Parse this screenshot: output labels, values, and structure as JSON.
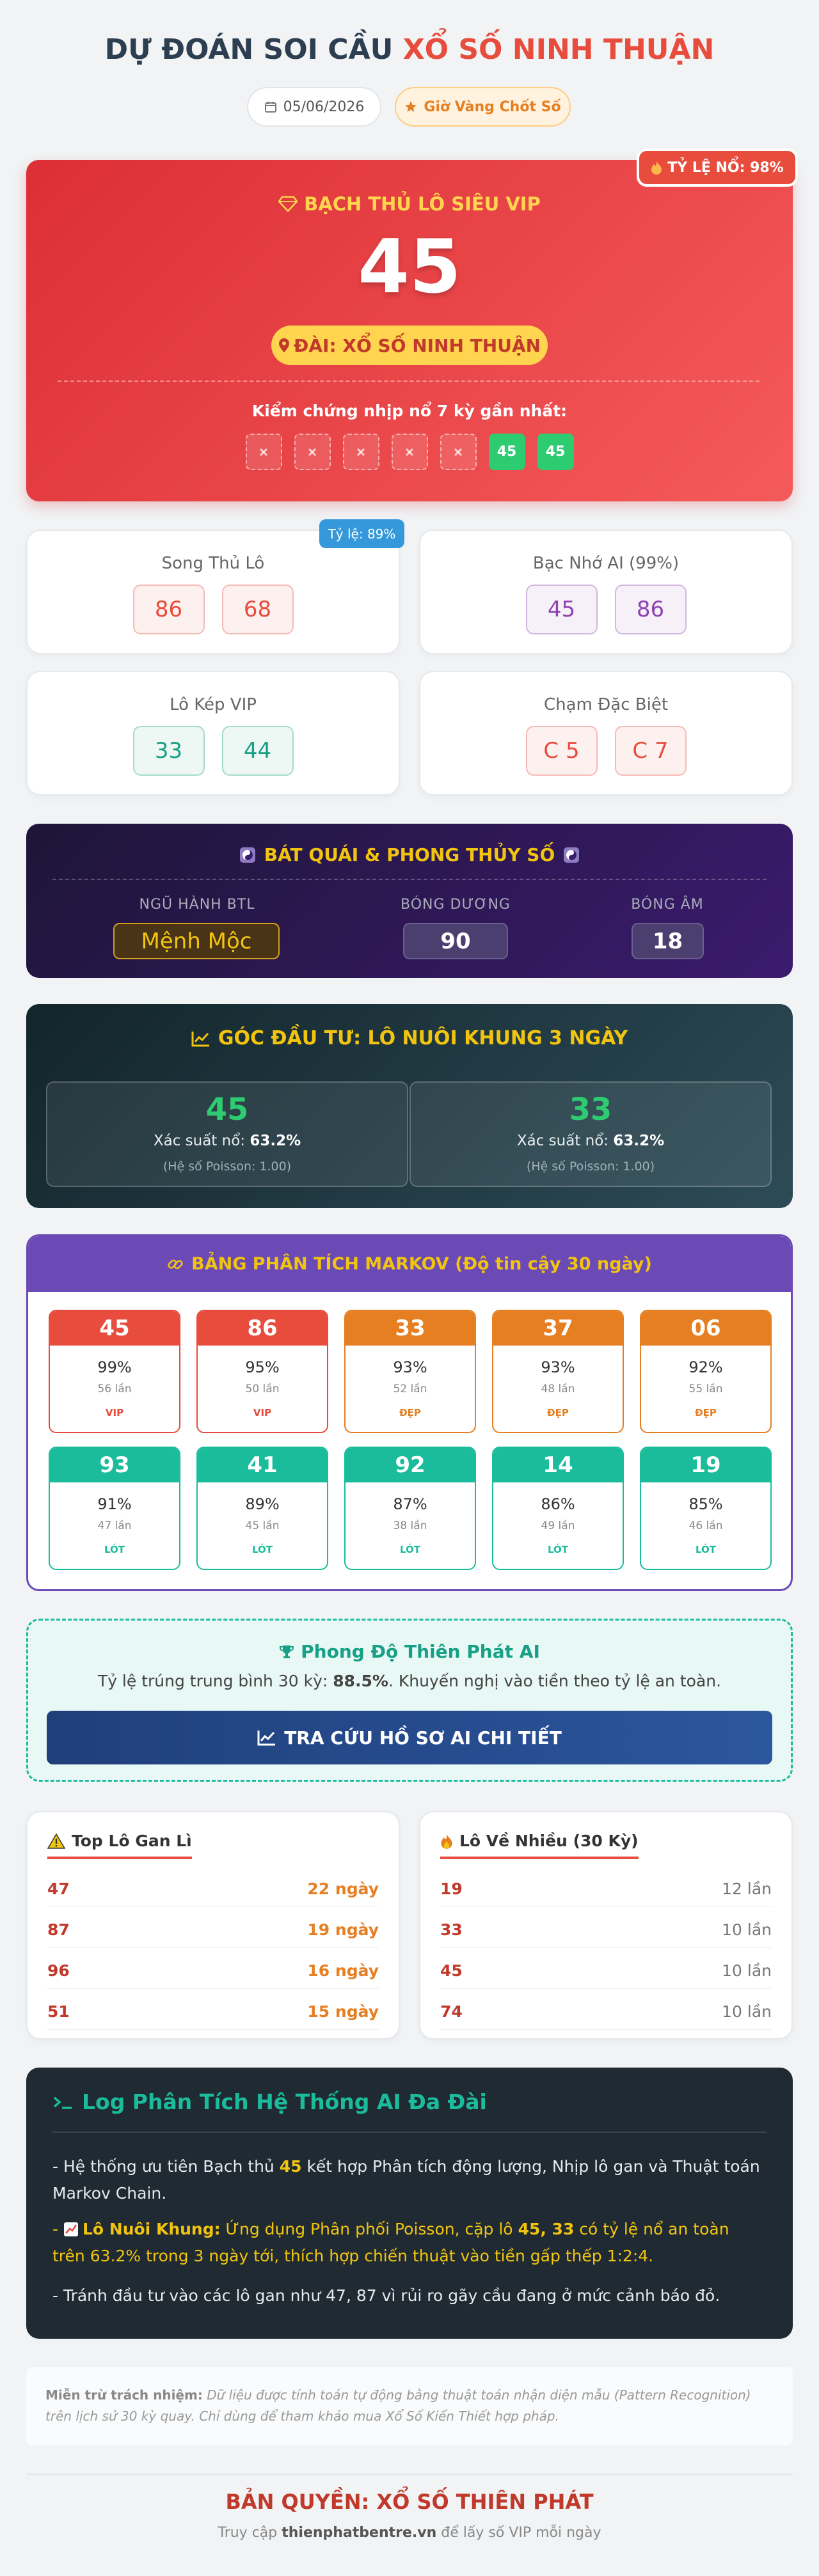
{
  "header": {
    "title_prefix": "DỰ ĐOÁN SOI CẦU",
    "title_highlight": "XỔ SỐ NINH THUẬN",
    "date": "05/06/2026",
    "badge": "Giờ Vàng Chốt Số"
  },
  "vip": {
    "rate_badge": "TỶ LỆ NỔ: 98%",
    "label": "BẠCH THỦ LÔ SIÊU VIP",
    "number": "45",
    "station": "ĐÀI: XỔ SỐ NINH THUẬN",
    "history_label": "Kiểm chứng nhịp nổ 7 kỳ gần nhất:",
    "history": [
      null,
      null,
      null,
      null,
      null,
      "45",
      "45"
    ]
  },
  "cards": [
    {
      "title": "Song Thủ Lô",
      "badge": "Tỷ lệ: 89%",
      "numbers": [
        "86",
        "68"
      ],
      "color": "#e74c3c"
    },
    {
      "title": "Bạc Nhớ AI (99%)",
      "numbers": [
        "45",
        "86"
      ],
      "color": "#8e44ad"
    },
    {
      "title": "Lô Kép VIP",
      "numbers": [
        "33",
        "44"
      ],
      "color": "#16a085"
    },
    {
      "title": "Chạm Đặc Biệt",
      "numbers": [
        "C 5",
        "C 7"
      ],
      "color": "#e74c3c"
    }
  ],
  "fengshui": {
    "title": "BÁT QUÁI & PHONG THỦY SỐ",
    "items": [
      {
        "label": "NGŨ HÀNH BTL",
        "value": "Mệnh Mộc"
      },
      {
        "label": "BÓNG DƯƠNG",
        "value": "90"
      },
      {
        "label": "BÓNG ÂM",
        "value": "18"
      }
    ]
  },
  "investment": {
    "title": "GÓC ĐẦU TƯ: LÔ NUÔI KHUNG 3 NGÀY",
    "items": [
      {
        "number": "45",
        "prob_label": "Xác suất nổ:",
        "prob": "63.2%",
        "poisson": "(Hệ số Poisson: 1.00)"
      },
      {
        "number": "33",
        "prob_label": "Xác suất nổ:",
        "prob": "63.2%",
        "poisson": "(Hệ số Poisson: 1.00)"
      }
    ]
  },
  "markov": {
    "title": "BẢNG PHÂN TÍCH MARKOV (Độ tin cậy 30 ngày)",
    "items": [
      {
        "number": "45",
        "percent": "99%",
        "count": "56 lần",
        "tag": "VIP",
        "color": "#e74c3c"
      },
      {
        "number": "86",
        "percent": "95%",
        "count": "50 lần",
        "tag": "VIP",
        "color": "#e74c3c"
      },
      {
        "number": "33",
        "percent": "93%",
        "count": "52 lần",
        "tag": "ĐẸP",
        "color": "#e67e22"
      },
      {
        "number": "37",
        "percent": "93%",
        "count": "48 lần",
        "tag": "ĐẸP",
        "color": "#e67e22"
      },
      {
        "number": "06",
        "percent": "92%",
        "count": "55 lần",
        "tag": "ĐẸP",
        "color": "#e67e22"
      },
      {
        "number": "93",
        "percent": "91%",
        "count": "47 lần",
        "tag": "LÓT",
        "color": "#1abc9c"
      },
      {
        "number": "41",
        "percent": "89%",
        "count": "45 lần",
        "tag": "LÓT",
        "color": "#1abc9c"
      },
      {
        "number": "92",
        "percent": "87%",
        "count": "38 lần",
        "tag": "LÓT",
        "color": "#1abc9c"
      },
      {
        "number": "14",
        "percent": "86%",
        "count": "49 lần",
        "tag": "LÓT",
        "color": "#1abc9c"
      },
      {
        "number": "19",
        "percent": "85%",
        "count": "46 lần",
        "tag": "LÓT",
        "color": "#1abc9c"
      }
    ]
  },
  "performance": {
    "title": "Phong Độ Thiên Phát AI",
    "text_before": "Tỷ lệ trúng trung bình 30 kỳ: ",
    "rate": "88.5%",
    "text_after": ". Khuyến nghị vào tiền theo tỷ lệ an toàn.",
    "button": "TRA CỨU HỒ SƠ AI CHI TIẾT"
  },
  "gan": {
    "title": "Top Lô Gan Lì",
    "rows": [
      [
        "47",
        "22 ngày"
      ],
      [
        "87",
        "19 ngày"
      ],
      [
        "96",
        "16 ngày"
      ],
      [
        "51",
        "15 ngày"
      ]
    ]
  },
  "frequent": {
    "title": "Lô Về Nhiều (30 Kỳ)",
    "rows": [
      [
        "19",
        "12 lần"
      ],
      [
        "33",
        "10 lần"
      ],
      [
        "45",
        "10 lần"
      ],
      [
        "74",
        "10 lần"
      ]
    ]
  },
  "log": {
    "title": "Log Phân Tích Hệ Thống AI Đa Đài",
    "line1": [
      "- Hệ thống ưu tiên Bạch thủ ",
      "45",
      " kết hợp Phân tích động lượng, Nhịp lô gan và Thuật toán Markov Chain."
    ],
    "line2": [
      "- ",
      "Lô Nuôi Khung:",
      " Ứng dụng Phân phối Poisson, cặp lô ",
      "45, 33",
      " có tỷ lệ nổ an toàn trên 63.2% trong 3 ngày tới, thích hợp chiến thuật vào tiền gấp thếp 1:2:4."
    ],
    "line3": "- Tránh đầu tư vào các lô gan như 47, 87 vì rủi ro gãy cầu đang ở mức cảnh báo đỏ."
  },
  "disclaimer": {
    "label": "Miễn trừ trách nhiệm:",
    "text": " Dữ liệu được tính toán tự động bằng thuật toán nhận diện mẫu (Pattern Recognition) trên lịch sử 30 kỳ quay. Chỉ dùng để tham khảo mua Xổ Số Kiến Thiết hợp pháp."
  },
  "footer": {
    "copyright": "BẢN QUYỀN: XỔ SỐ THIÊN PHÁT",
    "visit_before": "Truy cập ",
    "site": "thienphatbentre.vn",
    "visit_after": " để lấy số VIP mỗi ngày"
  }
}
